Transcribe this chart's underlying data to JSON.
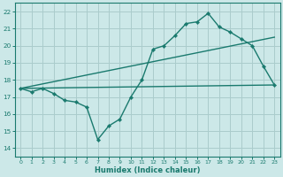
{
  "xlabel": "Humidex (Indice chaleur)",
  "bg_color": "#cce8e8",
  "grid_color": "#aacccc",
  "line_color": "#1a7a6e",
  "xlim": [
    -0.5,
    23.5
  ],
  "ylim": [
    13.5,
    22.5
  ],
  "xticks": [
    0,
    1,
    2,
    3,
    4,
    5,
    6,
    7,
    8,
    9,
    10,
    11,
    12,
    13,
    14,
    15,
    16,
    17,
    18,
    19,
    20,
    21,
    22,
    23
  ],
  "yticks": [
    14,
    15,
    16,
    17,
    18,
    19,
    20,
    21,
    22
  ],
  "line1_x": [
    0,
    1,
    2,
    3,
    4,
    5,
    6,
    7,
    8,
    9,
    10,
    11,
    12,
    13,
    14,
    15,
    16,
    17,
    18,
    19,
    20,
    21,
    22,
    23
  ],
  "line1_y": [
    17.5,
    17.3,
    17.5,
    17.2,
    16.8,
    16.7,
    16.4,
    14.5,
    15.3,
    15.7,
    17.0,
    18.0,
    19.8,
    20.0,
    20.6,
    21.3,
    21.4,
    21.9,
    21.1,
    20.8,
    20.4,
    20.0,
    18.8,
    17.7
  ],
  "line2_x": [
    0,
    23
  ],
  "line2_y": [
    17.5,
    20.5
  ],
  "line3_x": [
    0,
    23
  ],
  "line3_y": [
    17.5,
    17.7
  ]
}
